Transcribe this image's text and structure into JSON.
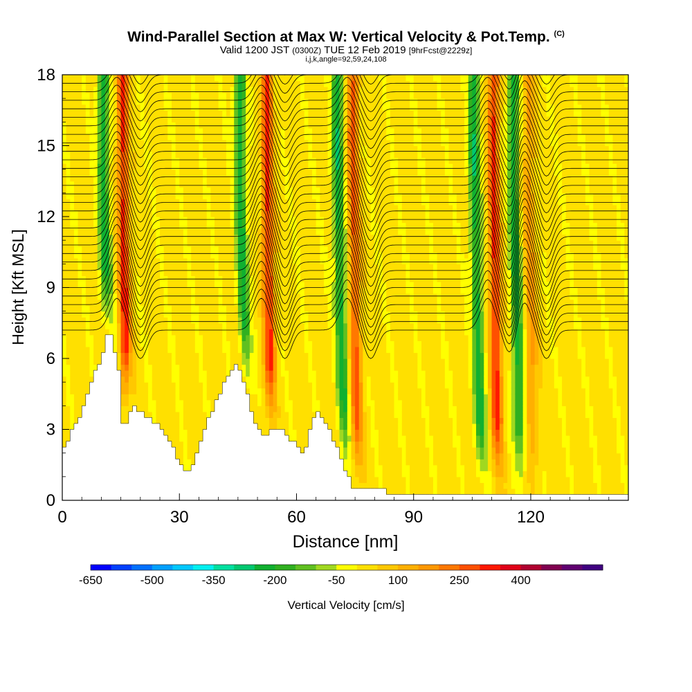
{
  "header": {
    "title_main": "Wind-Parallel Section at Max W: Vertical Velocity & Pot.Temp.",
    "title_mark": "(C)",
    "subtitle_a": "Valid 1200 JST",
    "subtitle_b": "(0300Z)",
    "subtitle_c": "TUE 12 Feb 2019",
    "subtitle_d": "[9hrFcst@2229z]",
    "params": "i,j,k,angle=92,59,24,108"
  },
  "chart_data": {
    "type": "heatmap",
    "xlabel": "Distance [nm]",
    "ylabel": "Height [Kft MSL]",
    "xlim": [
      0,
      145
    ],
    "ylim": [
      0,
      18
    ],
    "x_ticks": [
      0,
      30,
      60,
      90,
      120
    ],
    "y_ticks": [
      0,
      3,
      6,
      9,
      12,
      15,
      18
    ],
    "grid": false,
    "colorbar": {
      "label": "Vertical Velocity [cm/s]",
      "placement": "bottom",
      "levels_start": -650,
      "levels_step": 50,
      "tick_labels": [
        "-650",
        "-500",
        "-350",
        "-200",
        "-50",
        "100",
        "250",
        "400"
      ],
      "colors": [
        "#0000ff",
        "#0040ff",
        "#0070ff",
        "#00a0ff",
        "#00c8ff",
        "#00f0f0",
        "#00e0a0",
        "#00c870",
        "#10b030",
        "#30b020",
        "#60c020",
        "#a0d820",
        "#ffff00",
        "#ffe000",
        "#ffc800",
        "#ffb000",
        "#ff9800",
        "#ff7800",
        "#ff5000",
        "#ff1800",
        "#e00018",
        "#b00030",
        "#800050",
        "#600070",
        "#400080"
      ]
    },
    "terrain_profile": {
      "x": [
        0,
        1,
        2,
        4,
        6,
        8,
        10,
        11,
        12,
        13,
        14,
        15,
        16,
        17,
        18,
        20,
        22,
        25,
        28,
        30,
        31,
        32,
        33,
        35,
        37,
        40,
        42,
        44,
        45,
        46,
        47,
        48,
        49,
        50,
        51,
        53,
        56,
        58,
        60,
        61,
        62,
        63,
        64,
        65,
        66,
        68,
        70,
        71,
        72,
        73,
        74,
        75,
        78,
        80,
        85,
        90,
        95,
        100,
        110,
        120,
        130,
        140,
        145
      ],
      "y": [
        2.2,
        2.6,
        3.0,
        3.6,
        4.4,
        5.4,
        6.2,
        7.0,
        7.0,
        6.2,
        5.4,
        3.2,
        3.2,
        3.8,
        3.9,
        3.8,
        3.4,
        3.0,
        2.2,
        1.5,
        1.3,
        1.3,
        1.6,
        2.4,
        3.4,
        4.5,
        5.3,
        5.7,
        5.5,
        4.9,
        4.4,
        3.8,
        3.3,
        3.1,
        2.8,
        2.9,
        2.9,
        2.6,
        2.2,
        2.0,
        2.3,
        2.9,
        3.5,
        3.8,
        3.6,
        3.0,
        2.2,
        1.8,
        1.3,
        0.9,
        0.6,
        0.5,
        0.45,
        0.4,
        0.35,
        0.35,
        0.35,
        0.35,
        0.35,
        0.35,
        0.35,
        0.35,
        0.35
      ]
    },
    "vertical_velocity_bands": [
      {
        "x": 10.5,
        "w_cm_s": -250
      },
      {
        "x": 15.5,
        "w_cm_s": 300
      },
      {
        "x": 45.5,
        "w_cm_s": -250
      },
      {
        "x": 52.5,
        "w_cm_s": 300
      },
      {
        "x": 70.5,
        "w_cm_s": -250
      },
      {
        "x": 74.5,
        "w_cm_s": 250
      },
      {
        "x": 105.5,
        "w_cm_s": -250
      },
      {
        "x": 110.5,
        "w_cm_s": 300
      },
      {
        "x": 115.5,
        "w_cm_s": -250
      },
      {
        "x": 119.5,
        "w_cm_s": 150
      }
    ]
  }
}
